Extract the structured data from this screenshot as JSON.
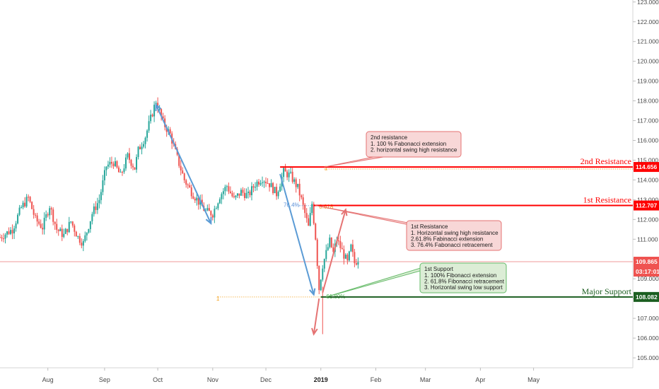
{
  "chart_data": {
    "type": "candlestick",
    "y_ticks": [
      "105.000",
      "106.000",
      "107.000",
      "108.000",
      "109.000",
      "110.000",
      "111.000",
      "112.000",
      "113.000",
      "114.000",
      "115.000",
      "116.000",
      "117.000",
      "118.000",
      "119.000",
      "120.000",
      "121.000",
      "122.000",
      "123.000"
    ],
    "ylim": [
      104.5,
      123.1
    ],
    "x_ticks": [
      {
        "label": "Aug",
        "day": 15
      },
      {
        "label": "Sep",
        "day": 47
      },
      {
        "label": "Oct",
        "day": 77
      },
      {
        "label": "Nov",
        "day": 108
      },
      {
        "label": "Dec",
        "day": 138
      },
      {
        "label": "2019",
        "day": 169,
        "bold": true
      },
      {
        "label": "Feb",
        "day": 200
      },
      {
        "label": "Mar",
        "day": 228
      },
      {
        "label": "Apr",
        "day": 259
      },
      {
        "label": "May",
        "day": 289
      }
    ],
    "xlim": [
      -12,
      345
    ],
    "path": [
      [
        -12,
        111.1
      ],
      [
        -5,
        111.5
      ],
      [
        0,
        112.6
      ],
      [
        4,
        113.1
      ],
      [
        8,
        112.0
      ],
      [
        12,
        111.6
      ],
      [
        16,
        112.7
      ],
      [
        20,
        111.5
      ],
      [
        24,
        111.2
      ],
      [
        28,
        111.9
      ],
      [
        32,
        111.1
      ],
      [
        35,
        110.8
      ],
      [
        40,
        112.3
      ],
      [
        44,
        113.0
      ],
      [
        48,
        114.7
      ],
      [
        52,
        114.9
      ],
      [
        56,
        114.2
      ],
      [
        60,
        115.2
      ],
      [
        64,
        114.6
      ],
      [
        66,
        115.5
      ],
      [
        70,
        116.2
      ],
      [
        74,
        117.4
      ],
      [
        76,
        118.0
      ],
      [
        80,
        116.9
      ],
      [
        84,
        116.3
      ],
      [
        88,
        115.1
      ],
      [
        92,
        114.0
      ],
      [
        96,
        113.4
      ],
      [
        100,
        112.9
      ],
      [
        104,
        112.4
      ],
      [
        108,
        112.3
      ],
      [
        112,
        113.2
      ],
      [
        116,
        113.7
      ],
      [
        120,
        113.0
      ],
      [
        124,
        113.4
      ],
      [
        128,
        113.2
      ],
      [
        132,
        113.8
      ],
      [
        136,
        114.1
      ],
      [
        140,
        113.8
      ],
      [
        144,
        113.3
      ],
      [
        148,
        114.4
      ],
      [
        152,
        114.2
      ],
      [
        156,
        113.6
      ],
      [
        158,
        113.0
      ],
      [
        160,
        112.3
      ],
      [
        162,
        111.6
      ],
      [
        164,
        112.8
      ],
      [
        166,
        111.1
      ],
      [
        168,
        108.5
      ],
      [
        170,
        109.7
      ],
      [
        172,
        110.3
      ],
      [
        174,
        110.9
      ],
      [
        176,
        110.3
      ],
      [
        178,
        111.0
      ],
      [
        180,
        110.6
      ],
      [
        182,
        110.2
      ],
      [
        184,
        109.8
      ],
      [
        186,
        110.6
      ],
      [
        188,
        109.8
      ],
      [
        190,
        110.0
      ]
    ],
    "current_price_line": 109.865,
    "low_wick": {
      "day": 170,
      "low": 106.2
    },
    "levels": [
      {
        "name": "2nd Resistance",
        "price": 114.656,
        "price_label": "114.656",
        "color": "#ff0000",
        "from_day": 146
      },
      {
        "name": "1st Resistance",
        "price": 112.707,
        "price_label": "112.707",
        "color": "#ff0000",
        "from_day": 165
      },
      {
        "name": "Major Support",
        "price": 108.082,
        "price_label": "108.082",
        "color": "#1b5e20",
        "from_day": 169
      }
    ],
    "current_price_label": "109.865",
    "countdown_label": "03:17:01",
    "fib_labels": [
      {
        "text": "76.4%",
        "day": 157,
        "price": 112.75,
        "color": "#5a8fd8",
        "anchor": "end"
      },
      {
        "text": "0.618",
        "day": 168,
        "price": 112.65,
        "color": "#f39c12",
        "anchor": "start"
      },
      {
        "text": "1",
        "day": 171,
        "price": 114.6,
        "color": "#f39c12",
        "anchor": "start"
      },
      {
        "text": "1",
        "day": 110,
        "price": 108.0,
        "color": "#f39c12",
        "anchor": "start"
      },
      {
        "text": "61.80%",
        "day": 172,
        "price": 108.12,
        "color": "#4caf50",
        "anchor": "start"
      }
    ],
    "fib_dotted": [
      {
        "from_day": 111,
        "to_day": 169,
        "price": 108.08,
        "color": "#f39c12"
      },
      {
        "from_day": 171,
        "to_day": 345,
        "price": 114.55,
        "color": "#f39c12"
      },
      {
        "from_day": 157,
        "to_day": 166,
        "price": 112.7,
        "color": "#5a8fd8"
      }
    ],
    "arrows": [
      {
        "from": [
          76,
          117.8
        ],
        "to": [
          107,
          111.8
        ],
        "color": "#5b9bd5",
        "double": true
      },
      {
        "from": [
          146,
          114.3
        ],
        "to": [
          165,
          108.2
        ],
        "color": "#5b9bd5",
        "double": false
      },
      {
        "from": [
          168,
          108.0
        ],
        "to": [
          165,
          106.2
        ],
        "color": "#e57373",
        "double": false
      },
      {
        "from": [
          170,
          108.3
        ],
        "to": [
          183,
          112.5
        ],
        "color": "#e57373",
        "double": false
      }
    ]
  },
  "callouts": [
    {
      "id": "resist2",
      "title": "2nd resistance",
      "lines": [
        "1. 100 % Fabonacci extension",
        "2. horizontal swing high resistance"
      ],
      "fill": "#f8d7d7",
      "stroke": "#e57373"
    },
    {
      "id": "resist1",
      "title": "1st Resistance",
      "lines": [
        "1. Horizontal swing high resistance",
        "2.61.8% Fabinacci extension",
        "3. 76.4% Fabonacci retracement"
      ],
      "fill": "#f8d7d7",
      "stroke": "#e57373"
    },
    {
      "id": "support1",
      "title": "1st Support",
      "lines": [
        "1. 100% Fibonacci extension",
        "2. 61.8% Fibonacci retracement",
        "3. Horizontal swing low support"
      ],
      "fill": "#dcedd6",
      "stroke": "#66bb6a"
    }
  ]
}
